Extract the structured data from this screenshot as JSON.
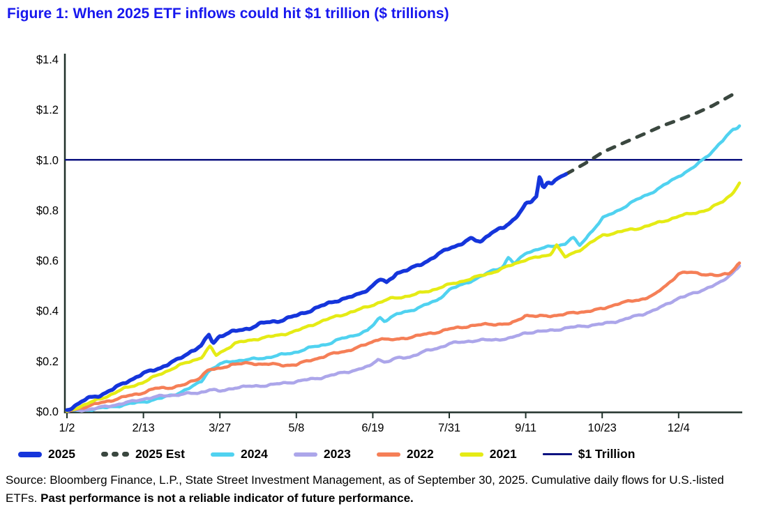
{
  "figure": {
    "title": "Figure 1: When 2025 ETF inflows could hit $1 trillion ($ trillions)"
  },
  "colors": {
    "title_blue": "#1717EE",
    "axis": "#20312A",
    "line_2025": "#1535DB",
    "line_2025_est": "#3A473F",
    "line_2024": "#50D2F0",
    "line_2023": "#ACA6EA",
    "line_2022": "#F57F57",
    "line_2021": "#E5EB15",
    "line_1trillion": "#0B1280"
  },
  "chart_data": {
    "type": "line",
    "title": "When 2025 ETF inflows could hit $1 trillion",
    "units": "$ trillions",
    "xlabel": "",
    "ylabel": "",
    "ylim": [
      0,
      1.4
    ],
    "grid": false,
    "legend_position": "bottom",
    "y_ticks": [
      "$0.0",
      "$0.2",
      "$0.4",
      "$0.6",
      "$0.8",
      "$1.0",
      "$1.2",
      "$1.4"
    ],
    "y_tick_values": [
      0,
      0.2,
      0.4,
      0.6,
      0.8,
      1.0,
      1.2,
      1.4
    ],
    "x_ticks": [
      "1/2",
      "2/13",
      "3/27",
      "5/8",
      "6/19",
      "7/31",
      "9/11",
      "10/23",
      "12/4"
    ],
    "axis_color": "#20312A",
    "reference_line": {
      "label": "$1 Trillion",
      "value": 1.0,
      "color": "#0B1280"
    },
    "series": [
      {
        "name": "2024",
        "color": "#50D2F0",
        "width": 4.5,
        "dash": "",
        "jitter": 0.005,
        "points": [
          [
            0,
            0.0
          ],
          [
            0.03,
            0.006
          ],
          [
            0.06,
            0.015
          ],
          [
            0.09,
            0.028
          ],
          [
            0.114,
            0.038
          ],
          [
            0.14,
            0.052
          ],
          [
            0.165,
            0.072
          ],
          [
            0.185,
            0.095
          ],
          [
            0.2,
            0.12
          ],
          [
            0.21,
            0.16
          ],
          [
            0.22,
            0.175
          ],
          [
            0.227,
            0.187
          ],
          [
            0.245,
            0.2
          ],
          [
            0.27,
            0.205
          ],
          [
            0.3,
            0.215
          ],
          [
            0.32,
            0.225
          ],
          [
            0.341,
            0.236
          ],
          [
            0.365,
            0.255
          ],
          [
            0.39,
            0.27
          ],
          [
            0.41,
            0.29
          ],
          [
            0.43,
            0.305
          ],
          [
            0.447,
            0.32
          ],
          [
            0.458,
            0.35
          ],
          [
            0.465,
            0.375
          ],
          [
            0.472,
            0.36
          ],
          [
            0.49,
            0.385
          ],
          [
            0.51,
            0.4
          ],
          [
            0.53,
            0.42
          ],
          [
            0.55,
            0.44
          ],
          [
            0.569,
            0.485
          ],
          [
            0.59,
            0.505
          ],
          [
            0.61,
            0.53
          ],
          [
            0.63,
            0.555
          ],
          [
            0.648,
            0.575
          ],
          [
            0.657,
            0.615
          ],
          [
            0.665,
            0.585
          ],
          [
            0.675,
            0.61
          ],
          [
            0.682,
            0.63
          ],
          [
            0.7,
            0.645
          ],
          [
            0.72,
            0.655
          ],
          [
            0.74,
            0.665
          ],
          [
            0.752,
            0.693
          ],
          [
            0.762,
            0.657
          ],
          [
            0.775,
            0.7
          ],
          [
            0.797,
            0.768
          ],
          [
            0.82,
            0.8
          ],
          [
            0.85,
            0.845
          ],
          [
            0.88,
            0.885
          ],
          [
            0.91,
            0.937
          ],
          [
            0.93,
            0.965
          ],
          [
            0.945,
            1.0
          ],
          [
            0.96,
            1.035
          ],
          [
            0.975,
            1.075
          ],
          [
            0.99,
            1.12
          ],
          [
            1.0,
            1.135
          ]
        ]
      },
      {
        "name": "2023",
        "color": "#ACA6EA",
        "width": 4.5,
        "dash": "",
        "jitter": 0.005,
        "points": [
          [
            0,
            0.0
          ],
          [
            0.04,
            0.01
          ],
          [
            0.07,
            0.025
          ],
          [
            0.1,
            0.04
          ],
          [
            0.114,
            0.05
          ],
          [
            0.14,
            0.06
          ],
          [
            0.17,
            0.068
          ],
          [
            0.195,
            0.072
          ],
          [
            0.213,
            0.088
          ],
          [
            0.227,
            0.078
          ],
          [
            0.25,
            0.095
          ],
          [
            0.28,
            0.1
          ],
          [
            0.31,
            0.107
          ],
          [
            0.341,
            0.119
          ],
          [
            0.37,
            0.13
          ],
          [
            0.4,
            0.147
          ],
          [
            0.43,
            0.165
          ],
          [
            0.452,
            0.18
          ],
          [
            0.462,
            0.21
          ],
          [
            0.473,
            0.195
          ],
          [
            0.49,
            0.21
          ],
          [
            0.51,
            0.217
          ],
          [
            0.535,
            0.24
          ],
          [
            0.555,
            0.255
          ],
          [
            0.569,
            0.269
          ],
          [
            0.6,
            0.28
          ],
          [
            0.63,
            0.284
          ],
          [
            0.66,
            0.29
          ],
          [
            0.682,
            0.313
          ],
          [
            0.71,
            0.318
          ],
          [
            0.74,
            0.33
          ],
          [
            0.77,
            0.34
          ],
          [
            0.797,
            0.347
          ],
          [
            0.825,
            0.363
          ],
          [
            0.855,
            0.385
          ],
          [
            0.885,
            0.415
          ],
          [
            0.91,
            0.452
          ],
          [
            0.935,
            0.47
          ],
          [
            0.955,
            0.495
          ],
          [
            0.975,
            0.515
          ],
          [
            1.0,
            0.578
          ]
        ]
      },
      {
        "name": "2022",
        "color": "#F57F57",
        "width": 4.5,
        "dash": "",
        "jitter": 0.005,
        "points": [
          [
            0,
            0.0
          ],
          [
            0.03,
            0.02
          ],
          [
            0.06,
            0.04
          ],
          [
            0.09,
            0.06
          ],
          [
            0.114,
            0.075
          ],
          [
            0.13,
            0.09
          ],
          [
            0.155,
            0.095
          ],
          [
            0.175,
            0.105
          ],
          [
            0.195,
            0.13
          ],
          [
            0.21,
            0.165
          ],
          [
            0.227,
            0.168
          ],
          [
            0.245,
            0.188
          ],
          [
            0.27,
            0.19
          ],
          [
            0.3,
            0.188
          ],
          [
            0.32,
            0.183
          ],
          [
            0.341,
            0.186
          ],
          [
            0.365,
            0.205
          ],
          [
            0.39,
            0.225
          ],
          [
            0.415,
            0.24
          ],
          [
            0.44,
            0.26
          ],
          [
            0.455,
            0.277
          ],
          [
            0.467,
            0.292
          ],
          [
            0.48,
            0.282
          ],
          [
            0.5,
            0.29
          ],
          [
            0.525,
            0.302
          ],
          [
            0.55,
            0.315
          ],
          [
            0.569,
            0.327
          ],
          [
            0.6,
            0.34
          ],
          [
            0.63,
            0.347
          ],
          [
            0.66,
            0.347
          ],
          [
            0.675,
            0.37
          ],
          [
            0.682,
            0.383
          ],
          [
            0.7,
            0.377
          ],
          [
            0.72,
            0.38
          ],
          [
            0.745,
            0.388
          ],
          [
            0.77,
            0.397
          ],
          [
            0.797,
            0.407
          ],
          [
            0.82,
            0.43
          ],
          [
            0.85,
            0.442
          ],
          [
            0.875,
            0.465
          ],
          [
            0.895,
            0.51
          ],
          [
            0.91,
            0.549
          ],
          [
            0.93,
            0.552
          ],
          [
            0.95,
            0.545
          ],
          [
            0.968,
            0.538
          ],
          [
            0.985,
            0.55
          ],
          [
            1.0,
            0.59
          ]
        ]
      },
      {
        "name": "2021",
        "color": "#E5EB15",
        "width": 4.5,
        "dash": "",
        "jitter": 0.005,
        "points": [
          [
            0,
            0.0
          ],
          [
            0.025,
            0.025
          ],
          [
            0.055,
            0.055
          ],
          [
            0.085,
            0.09
          ],
          [
            0.114,
            0.116
          ],
          [
            0.14,
            0.15
          ],
          [
            0.165,
            0.18
          ],
          [
            0.185,
            0.2
          ],
          [
            0.2,
            0.215
          ],
          [
            0.213,
            0.258
          ],
          [
            0.221,
            0.222
          ],
          [
            0.227,
            0.232
          ],
          [
            0.25,
            0.27
          ],
          [
            0.28,
            0.287
          ],
          [
            0.31,
            0.3
          ],
          [
            0.341,
            0.319
          ],
          [
            0.37,
            0.35
          ],
          [
            0.4,
            0.377
          ],
          [
            0.43,
            0.4
          ],
          [
            0.455,
            0.424
          ],
          [
            0.48,
            0.447
          ],
          [
            0.51,
            0.46
          ],
          [
            0.54,
            0.48
          ],
          [
            0.569,
            0.504
          ],
          [
            0.6,
            0.527
          ],
          [
            0.63,
            0.55
          ],
          [
            0.66,
            0.58
          ],
          [
            0.682,
            0.604
          ],
          [
            0.7,
            0.612
          ],
          [
            0.718,
            0.622
          ],
          [
            0.728,
            0.663
          ],
          [
            0.74,
            0.612
          ],
          [
            0.76,
            0.638
          ],
          [
            0.78,
            0.672
          ],
          [
            0.797,
            0.7
          ],
          [
            0.82,
            0.713
          ],
          [
            0.85,
            0.728
          ],
          [
            0.88,
            0.75
          ],
          [
            0.91,
            0.776
          ],
          [
            0.935,
            0.79
          ],
          [
            0.955,
            0.803
          ],
          [
            0.975,
            0.835
          ],
          [
            0.99,
            0.868
          ],
          [
            1.0,
            0.908
          ]
        ]
      },
      {
        "name": "2025 Est",
        "color": "#3A473F",
        "width": 5,
        "dash": "11 12",
        "jitter": 0,
        "points": [
          [
            0.742,
            0.943
          ],
          [
            0.77,
            0.985
          ],
          [
            0.797,
            1.031
          ],
          [
            0.83,
            1.07
          ],
          [
            0.86,
            1.105
          ],
          [
            0.885,
            1.135
          ],
          [
            0.91,
            1.159
          ],
          [
            0.935,
            1.185
          ],
          [
            0.96,
            1.215
          ],
          [
            0.98,
            1.245
          ],
          [
            0.998,
            1.272
          ]
        ]
      },
      {
        "name": "2025",
        "color": "#1535DB",
        "width": 5.5,
        "dash": "",
        "jitter": 0.006,
        "points": [
          [
            0,
            0.005
          ],
          [
            0.01,
            0.02
          ],
          [
            0.03,
            0.05
          ],
          [
            0.05,
            0.065
          ],
          [
            0.07,
            0.09
          ],
          [
            0.09,
            0.12
          ],
          [
            0.114,
            0.15
          ],
          [
            0.14,
            0.175
          ],
          [
            0.165,
            0.205
          ],
          [
            0.185,
            0.24
          ],
          [
            0.2,
            0.26
          ],
          [
            0.211,
            0.305
          ],
          [
            0.217,
            0.27
          ],
          [
            0.227,
            0.3
          ],
          [
            0.245,
            0.315
          ],
          [
            0.27,
            0.33
          ],
          [
            0.29,
            0.35
          ],
          [
            0.315,
            0.36
          ],
          [
            0.341,
            0.38
          ],
          [
            0.37,
            0.41
          ],
          [
            0.4,
            0.44
          ],
          [
            0.43,
            0.46
          ],
          [
            0.45,
            0.49
          ],
          [
            0.465,
            0.525
          ],
          [
            0.475,
            0.51
          ],
          [
            0.49,
            0.55
          ],
          [
            0.51,
            0.565
          ],
          [
            0.53,
            0.59
          ],
          [
            0.55,
            0.62
          ],
          [
            0.569,
            0.65
          ],
          [
            0.585,
            0.665
          ],
          [
            0.6,
            0.685
          ],
          [
            0.615,
            0.675
          ],
          [
            0.63,
            0.71
          ],
          [
            0.65,
            0.73
          ],
          [
            0.665,
            0.765
          ],
          [
            0.682,
            0.823
          ],
          [
            0.69,
            0.83
          ],
          [
            0.698,
            0.855
          ],
          [
            0.703,
            0.937
          ],
          [
            0.708,
            0.89
          ],
          [
            0.715,
            0.915
          ],
          [
            0.722,
            0.905
          ],
          [
            0.73,
            0.925
          ],
          [
            0.742,
            0.943
          ]
        ]
      }
    ]
  },
  "legend": {
    "items": [
      {
        "label": "2025",
        "color": "#1535DB",
        "style": "solid-thick"
      },
      {
        "label": "2025 Est",
        "color": "#3A473F",
        "style": "dashed"
      },
      {
        "label": "2024",
        "color": "#50D2F0",
        "style": "solid"
      },
      {
        "label": "2023",
        "color": "#ACA6EA",
        "style": "solid"
      },
      {
        "label": "2022",
        "color": "#F57F57",
        "style": "solid"
      },
      {
        "label": "2021",
        "color": "#E5EB15",
        "style": "solid"
      },
      {
        "label": "$1 Trillion",
        "color": "#0B1280",
        "style": "thin"
      }
    ]
  },
  "source": {
    "regular": "Source: Bloomberg Finance, L.P., State Street Investment Management, as of September 30, 2025. Cumulative daily flows for U.S.-listed ETFs. ",
    "bold": "Past performance is not a reliable indicator of future performance."
  }
}
